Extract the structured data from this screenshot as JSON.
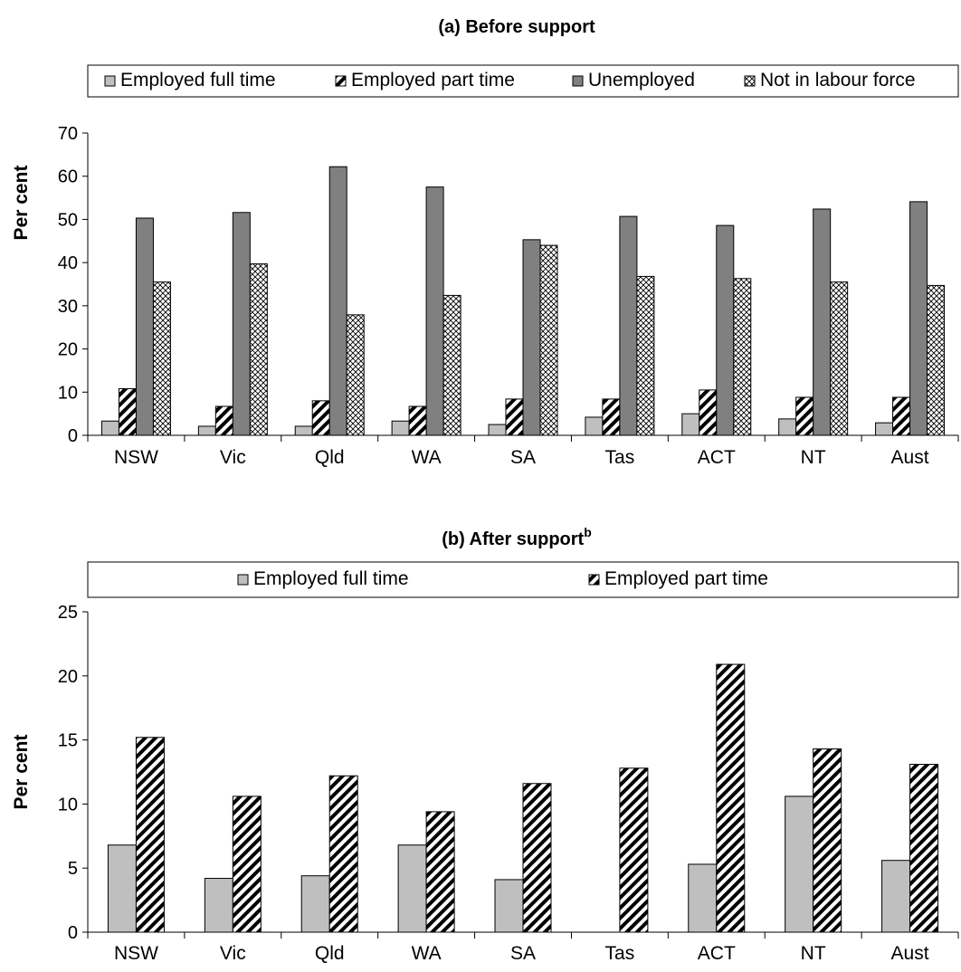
{
  "colors": {
    "full_time": "#bfbfbf",
    "unemployed": "#808080",
    "outline": "#000000"
  },
  "chart_data": [
    {
      "type": "bar",
      "title_main": "(a)  Before support",
      "title_sup": "",
      "ylabel": "Per cent",
      "ylim": [
        0,
        70
      ],
      "yticks": [
        0,
        10,
        20,
        30,
        40,
        50,
        60,
        70
      ],
      "grid": false,
      "legend": "top",
      "categories": [
        "NSW",
        "Vic",
        "Qld",
        "WA",
        "SA",
        "Tas",
        "ACT",
        "NT",
        "Aust"
      ],
      "series": [
        {
          "name": "Employed full time",
          "pattern": "solid-light",
          "values": [
            3.3,
            2.1,
            2.1,
            3.3,
            2.5,
            4.2,
            5.0,
            3.8,
            2.9
          ]
        },
        {
          "name": "Employed part time",
          "pattern": "diagonal",
          "values": [
            10.8,
            6.7,
            8.0,
            6.7,
            8.4,
            8.4,
            10.5,
            8.8,
            8.8
          ]
        },
        {
          "name": "Unemployed",
          "pattern": "solid-dark",
          "values": [
            50.3,
            51.6,
            62.2,
            57.5,
            45.3,
            50.7,
            48.6,
            52.4,
            54.1
          ]
        },
        {
          "name": "Not in labour force",
          "pattern": "crosshatch",
          "values": [
            35.5,
            39.7,
            27.9,
            32.4,
            44.0,
            36.8,
            36.3,
            35.5,
            34.7
          ]
        }
      ]
    },
    {
      "type": "bar",
      "title_main": "(b)  After support",
      "title_sup": "b",
      "ylabel": "Per cent",
      "ylim": [
        0,
        25
      ],
      "yticks": [
        0,
        5,
        10,
        15,
        20,
        25
      ],
      "grid": false,
      "legend": "top",
      "categories": [
        "NSW",
        "Vic",
        "Qld",
        "WA",
        "SA",
        "Tas",
        "ACT",
        "NT",
        "Aust"
      ],
      "series": [
        {
          "name": "Employed full time",
          "pattern": "solid-light",
          "values": [
            6.8,
            4.2,
            4.4,
            6.8,
            4.1,
            0,
            5.3,
            10.6,
            5.6
          ]
        },
        {
          "name": "Employed part time",
          "pattern": "diagonal",
          "values": [
            15.2,
            10.6,
            12.2,
            9.4,
            11.6,
            12.8,
            20.9,
            14.3,
            13.1
          ]
        }
      ]
    }
  ]
}
